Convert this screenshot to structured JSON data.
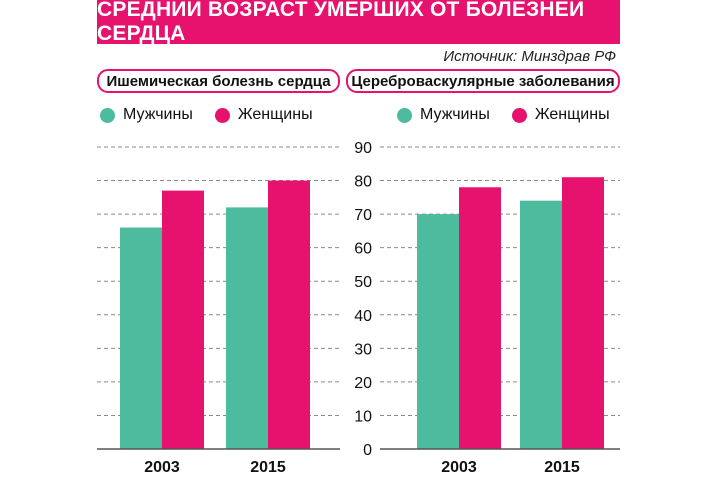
{
  "header": {
    "title": "СРЕДНИЙ ВОЗРАСТ УМЕРШИХ ОТ БОЛЕЗНЕЙ СЕРДЦА",
    "source": "Источник: Минздрав РФ"
  },
  "colors": {
    "men": "#4cbb9e",
    "women": "#e6126e",
    "grid": "#8a8a8a",
    "axis": "#555555"
  },
  "legend": {
    "men": "Мужчины",
    "women": "Женщины"
  },
  "chart_data": [
    {
      "type": "bar",
      "title": "Ишемическая болезнь сердца",
      "categories": [
        "2003",
        "2015"
      ],
      "series": [
        {
          "name": "Мужчины",
          "values": [
            66,
            72
          ]
        },
        {
          "name": "Женщины",
          "values": [
            77,
            80
          ]
        }
      ],
      "ylim": [
        0,
        90
      ],
      "yticks": [],
      "grid": true,
      "legend": "top"
    },
    {
      "type": "bar",
      "title": "Цереброваскулярные заболевания",
      "categories": [
        "2003",
        "2015"
      ],
      "series": [
        {
          "name": "Мужчины",
          "values": [
            70,
            74
          ]
        },
        {
          "name": "Женщины",
          "values": [
            78,
            81
          ]
        }
      ],
      "ylim": [
        0,
        90
      ],
      "yticks": [
        "0",
        "10",
        "20",
        "30",
        "40",
        "50",
        "60",
        "70",
        "80",
        "90"
      ],
      "grid": true,
      "legend": "top"
    }
  ]
}
